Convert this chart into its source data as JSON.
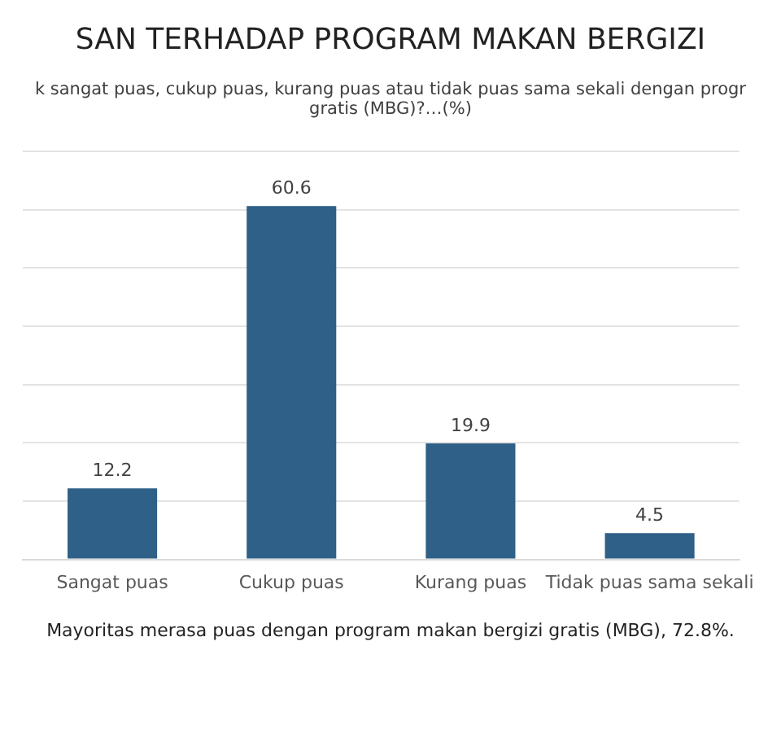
{
  "chart_data": {
    "type": "bar",
    "title": "SAN TERHADAP PROGRAM MAKAN BERGIZI",
    "subtitle": "k sangat puas, cukup puas, kurang puas atau tidak puas sama sekali dengan progr gratis (MBG)?…(%)",
    "categories": [
      "Sangat puas",
      "Cukup puas",
      "Kurang puas",
      "Tidak puas sama sekali"
    ],
    "values": [
      12.2,
      60.6,
      19.9,
      4.5
    ],
    "color": "#2e6088",
    "ylim": [
      0,
      70
    ],
    "yticks": [
      {
        "value": 0,
        "label": null
      },
      {
        "value": 10,
        "label": null
      },
      {
        "value": 20,
        "label": null
      },
      {
        "value": 30,
        "label": null
      },
      {
        "value": 40,
        "label": null
      },
      {
        "value": 50,
        "label": null
      },
      {
        "value": 60,
        "label": null
      },
      {
        "value": 70,
        "label": null
      }
    ],
    "grid": "y",
    "data_labels": true,
    "tick_labels": "x",
    "legend": false,
    "annotations": [
      "Mayoritas merasa puas dengan program makan bergizi gratis (MBG), 72.8%."
    ]
  }
}
